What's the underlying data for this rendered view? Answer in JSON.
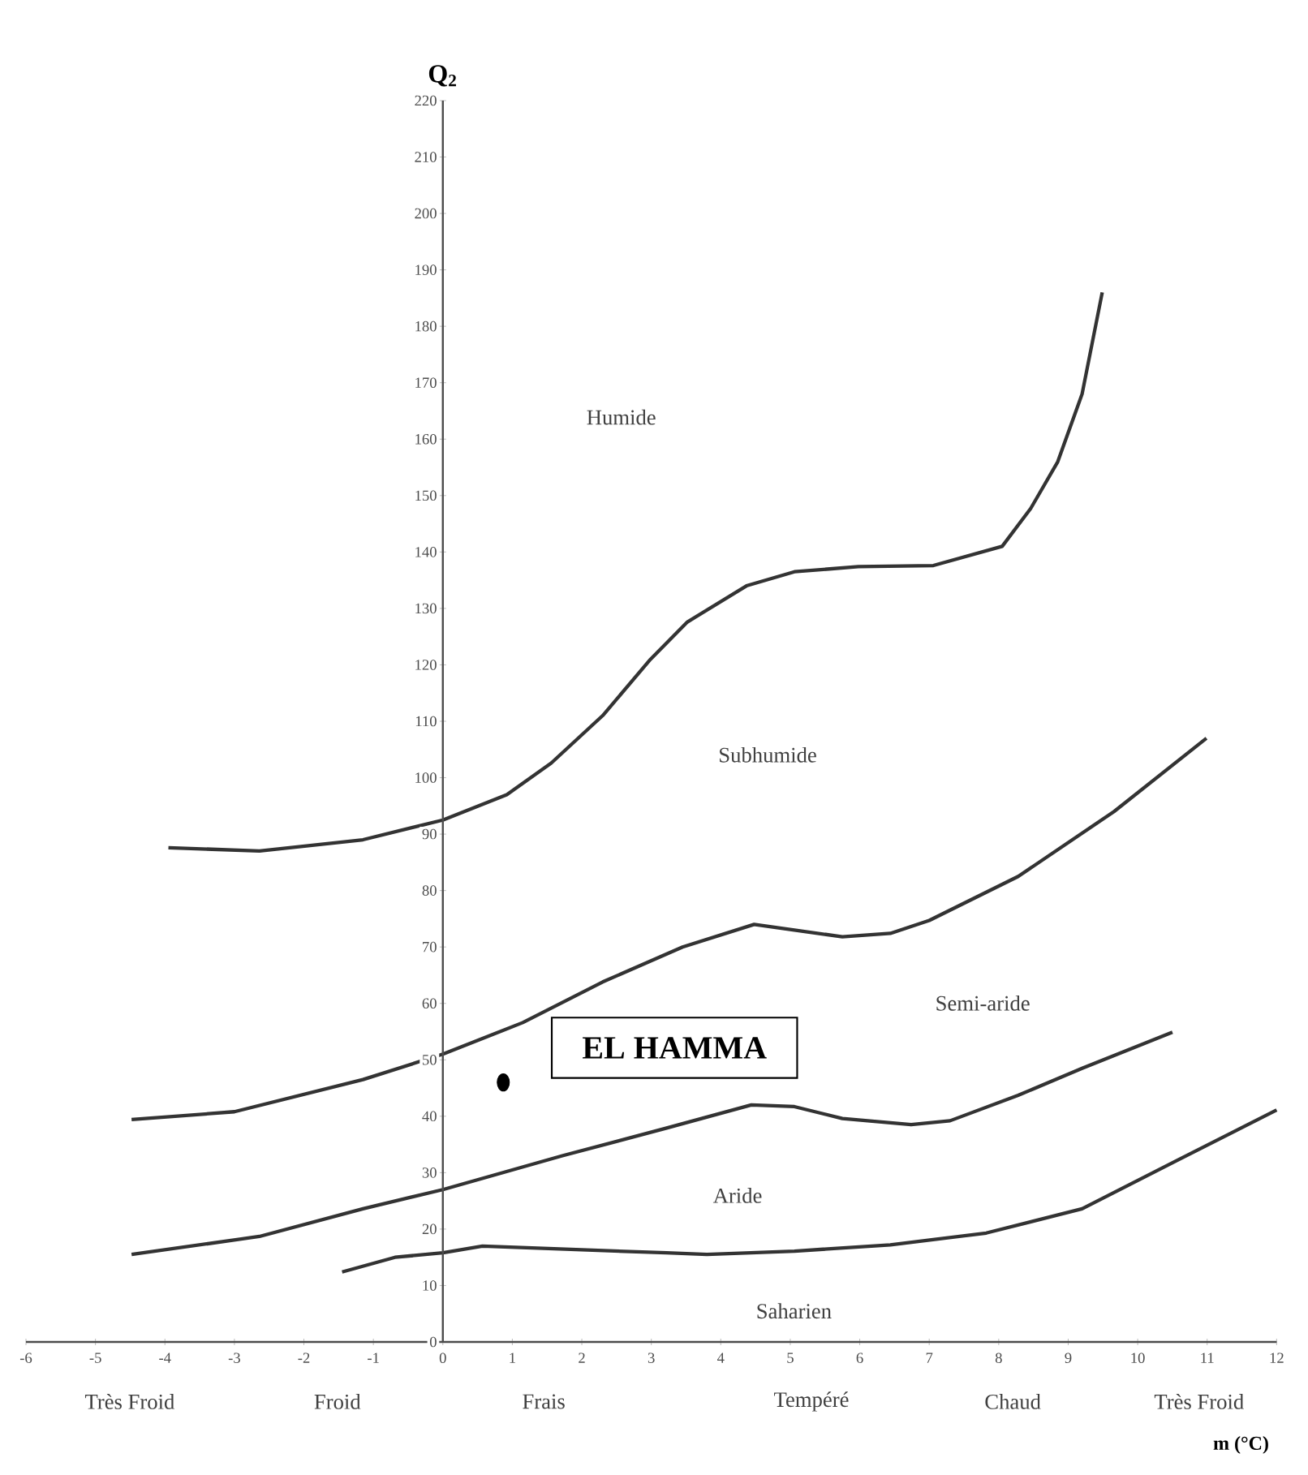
{
  "chart_data": {
    "type": "line",
    "xlabel": "m (°C)",
    "ylabel": "Q$_{2}$",
    "xlim": [
      -6,
      12
    ],
    "ylim": [
      0,
      220
    ],
    "xticks": [
      -6,
      -5,
      -4,
      -3,
      -2,
      -1,
      0,
      1,
      2,
      3,
      4,
      5,
      6,
      7,
      8,
      9,
      10,
      11,
      12
    ],
    "yticks": [
      0,
      10,
      20,
      30,
      40,
      50,
      60,
      70,
      80,
      90,
      100,
      110,
      120,
      130,
      140,
      150,
      160,
      170,
      180,
      190,
      200,
      210,
      220
    ],
    "grid": false,
    "series": [
      {
        "color": "#333333",
        "x": [
          -3.95,
          -2.64,
          -1.15,
          0,
          0.92,
          1.56,
          2.3,
          2.99,
          3.52,
          4.37,
          5.06,
          5.98,
          7.06,
          8.05,
          8.46,
          8.85,
          9.2,
          9.49
        ],
        "values": [
          87.6,
          87,
          89,
          92.5,
          97,
          102.6,
          111,
          121,
          127.6,
          134,
          136.5,
          137.4,
          137.6,
          141,
          147.7,
          156,
          168,
          186
        ]
      },
      {
        "color": "#333333",
        "x": [
          -4.48,
          -3,
          -1.15,
          0,
          1.15,
          2.3,
          3.45,
          4.48,
          5.06,
          5.75,
          6.44,
          7.0,
          8.28,
          9.66,
          10.99
        ],
        "values": [
          39.4,
          40.8,
          46.5,
          51,
          56.6,
          63.8,
          70,
          74,
          73,
          71.8,
          72.4,
          74.7,
          82.5,
          94,
          107
        ]
      },
      {
        "color": "#333333",
        "x": [
          -4.48,
          -2.64,
          -1.15,
          0,
          1.72,
          3.22,
          4.44,
          5.06,
          5.75,
          6.74,
          7.3,
          8.28,
          9.2,
          10.5
        ],
        "values": [
          15.5,
          18.7,
          23.6,
          27,
          33,
          37.9,
          42,
          41.7,
          39.6,
          38.5,
          39.2,
          43.7,
          48.5,
          54.9
        ]
      },
      {
        "color": "#333333",
        "x": [
          -1.45,
          -0.69,
          0,
          0.57,
          1.84,
          3.22,
          3.8,
          5.06,
          6.44,
          7.82,
          9.2,
          10.57,
          12
        ],
        "values": [
          12.4,
          15,
          15.8,
          17,
          16.4,
          15.8,
          15.5,
          16.1,
          17.2,
          19.3,
          23.6,
          32.2,
          41.1
        ]
      },
      {
        "type": "scatter",
        "name": "EL HAMMA",
        "color": "#000000",
        "x": [
          0.87
        ],
        "values": [
          46
        ]
      }
    ],
    "annotations": [
      "Humide",
      "Subhumide",
      "Semi-aride",
      "Aride",
      "Saharien",
      "Très Froid",
      "Froid",
      "Frais",
      "Tempéré",
      "Chaud",
      "Très Froid"
    ]
  }
}
